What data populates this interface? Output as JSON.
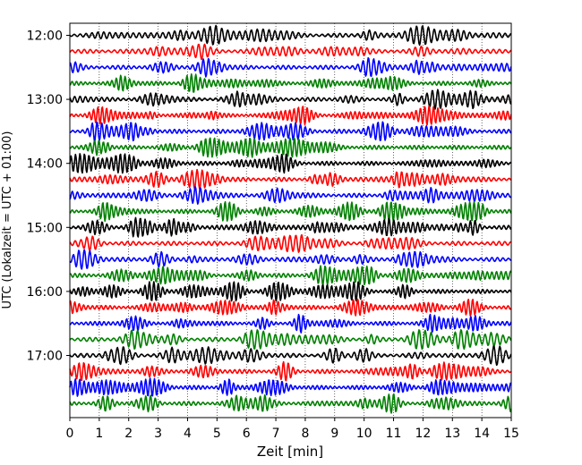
{
  "chart_data": {
    "type": "line",
    "title": "",
    "xlabel": "Zeit  [min]",
    "ylabel": "UTC (Lokalzeit = UTC + 01:00)",
    "xlim": [
      0,
      15
    ],
    "x_ticks": [
      0,
      1,
      2,
      3,
      4,
      5,
      6,
      7,
      8,
      9,
      10,
      11,
      12,
      13,
      14,
      15
    ],
    "x_tick_labels": [
      "0",
      "1",
      "2",
      "3",
      "4",
      "5",
      "6",
      "7",
      "8",
      "9",
      "10",
      "11",
      "12",
      "13",
      "14",
      "15"
    ],
    "y_tick_labels": [
      "12:00",
      "13:00",
      "14:00",
      "15:00",
      "16:00",
      "17:00"
    ],
    "grid": true,
    "color_cycle": [
      "#000000",
      "#ff0000",
      "#0000ff",
      "#008000"
    ],
    "trace_count": 24,
    "trace_interval_minutes": 15,
    "first_trace_start": "12:00"
  }
}
